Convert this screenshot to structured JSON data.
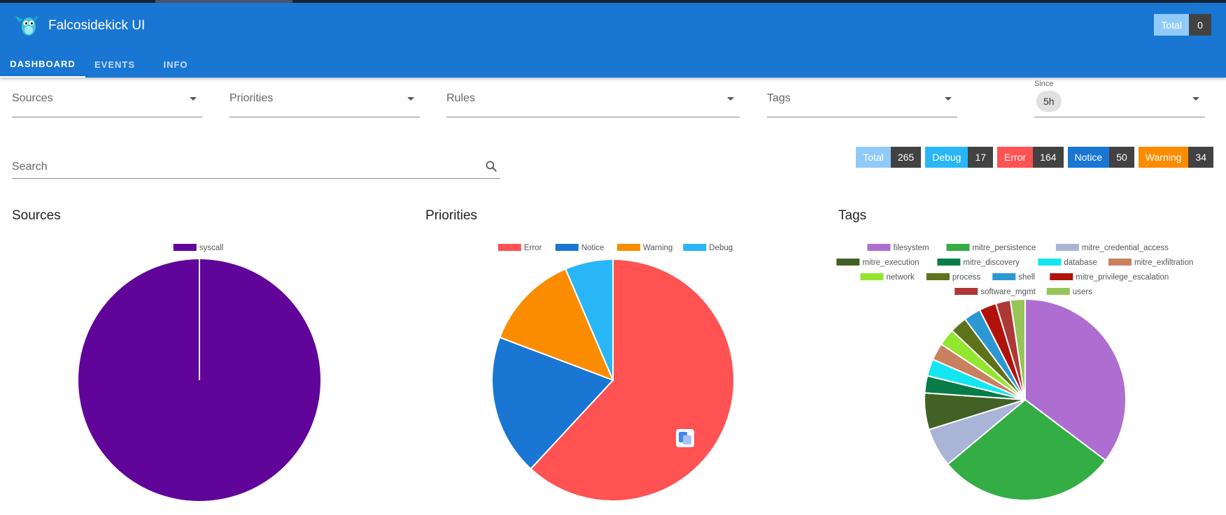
{
  "app": {
    "title": "Falcosidekick UI"
  },
  "header": {
    "total_label": "Total",
    "total_value": "0"
  },
  "tabs": [
    {
      "label": "DASHBOARD",
      "active": true
    },
    {
      "label": "EVENTS",
      "active": false
    },
    {
      "label": "INFO",
      "active": false
    }
  ],
  "filters": {
    "sources": "Sources",
    "priorities": "Priorities",
    "rules": "Rules",
    "tags": "Tags",
    "since_label": "Since",
    "since_value": "5h"
  },
  "search": {
    "placeholder": "Search",
    "value": ""
  },
  "counters": [
    {
      "label": "Total",
      "value": "265",
      "color": "#90caf9"
    },
    {
      "label": "Debug",
      "value": "17",
      "color": "#29b6f6"
    },
    {
      "label": "Error",
      "value": "164",
      "color": "#ff5252"
    },
    {
      "label": "Notice",
      "value": "50",
      "color": "#1976d2"
    },
    {
      "label": "Warning",
      "value": "34",
      "color": "#fb8c00"
    }
  ],
  "colors": {
    "appbar": "#1976d2",
    "counter_value_bg": "#424242"
  },
  "chart_data": [
    {
      "type": "pie",
      "title": "Sources",
      "labels": [
        "syscall"
      ],
      "values": [
        265
      ],
      "colors": [
        "#61059a"
      ],
      "legend": "top"
    },
    {
      "type": "pie",
      "title": "Priorities",
      "labels": [
        "Error",
        "Notice",
        "Warning",
        "Debug"
      ],
      "values": [
        164,
        50,
        34,
        17
      ],
      "colors": [
        "#ff5252",
        "#1976d2",
        "#fb8c00",
        "#29b6f6"
      ],
      "legend": "top"
    },
    {
      "type": "pie",
      "title": "Tags",
      "labels": [
        "filesystem",
        "mitre_persistence",
        "mitre_credential_access",
        "mitre_execution",
        "mitre_discovery",
        "database",
        "mitre_exfiltration",
        "network",
        "process",
        "shell",
        "mitre_privilege_escalation",
        "software_mgmt",
        "users"
      ],
      "values": [
        90,
        73,
        16,
        15,
        7,
        7,
        7,
        7,
        7,
        7,
        7,
        6,
        6
      ],
      "colors": [
        "#ae6dd0",
        "#33ad44",
        "#a9b4d6",
        "#426125",
        "#077c49",
        "#13e6f0",
        "#c9805e",
        "#93e62f",
        "#5e7219",
        "#2c98d3",
        "#b1120b",
        "#ae3836",
        "#97c458"
      ],
      "legend": "top"
    }
  ]
}
